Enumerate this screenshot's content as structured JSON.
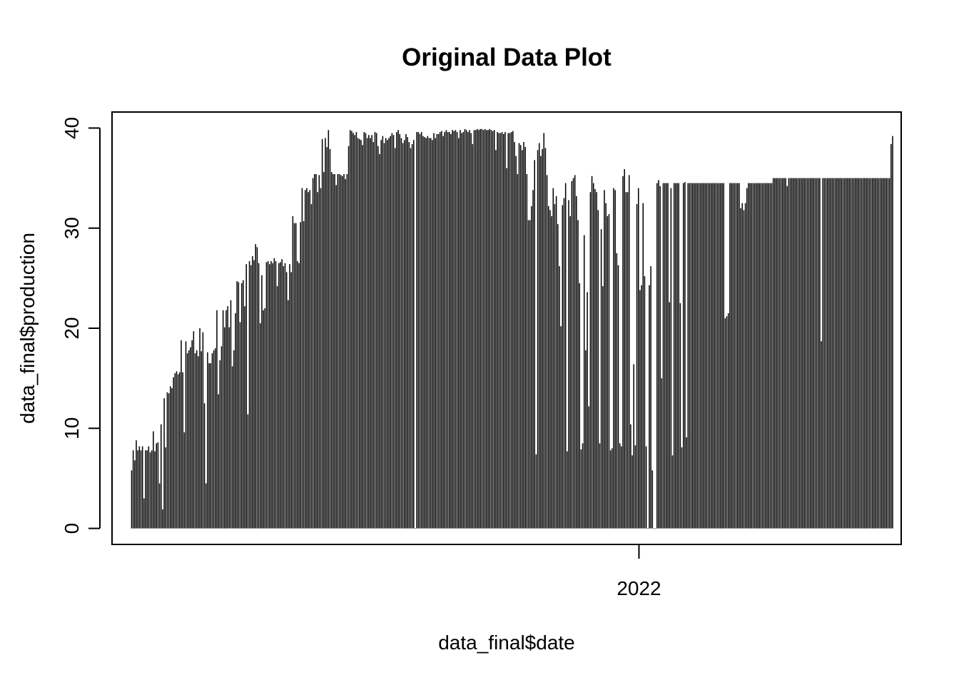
{
  "chart_data": {
    "type": "bar",
    "title": "Original Data Plot",
    "xlabel": "data_final$date",
    "ylabel": "data_final$production",
    "x_ticks": [
      {
        "value": "2022-01-01",
        "label": "2022"
      }
    ],
    "y_ticks": [
      0,
      10,
      20,
      30,
      40
    ],
    "ylim": [
      -1.6,
      41.6
    ],
    "xlim": [
      "2020-10-28",
      "2022-08-03"
    ],
    "grid": false,
    "legend": "none",
    "bar_color": "#000000",
    "date_range": [
      "2020-11-13",
      "2022-07-27"
    ],
    "series": [
      {
        "values": [
          5.8,
          7.8,
          6.8,
          8.8,
          7.8,
          8.2,
          7.8,
          8.2,
          3.0,
          7.8,
          7.8,
          8.2,
          7.6,
          7.8,
          9.7,
          7.7,
          8.5,
          8.6,
          4.5,
          10.4,
          1.9,
          13.0,
          8.1,
          13.6,
          13.5,
          14.2,
          14.0,
          15.1,
          15.5,
          15.7,
          15.4,
          15.6,
          18.8,
          15.6,
          9.6,
          18.7,
          17.5,
          17.8,
          18.1,
          18.8,
          19.7,
          17.5,
          17.8,
          17.2,
          20.0,
          17.7,
          19.6,
          12.5,
          4.5,
          17.6,
          16.5,
          16.5,
          17.5,
          17.8,
          18.0,
          21.8,
          13.4,
          16.8,
          18.2,
          21.8,
          20.1,
          21.8,
          22.2,
          20.1,
          22.8,
          16.2,
          17.8,
          21.5,
          24.7,
          24.6,
          20.6,
          24.5,
          24.8,
          22.2,
          26.4,
          11.4,
          26.7,
          26.3,
          27.2,
          26.8,
          28.4,
          28.1,
          26.5,
          20.5,
          25.3,
          21.8,
          22.0,
          26.6,
          26.7,
          26.4,
          26.7,
          26.5,
          27.0,
          26.7,
          24.2,
          26.5,
          26.6,
          26.9,
          26.2,
          26.5,
          25.6,
          22.8,
          26.4,
          25.6,
          31.2,
          30.5,
          30.5,
          26.7,
          26.5,
          30.6,
          34.0,
          30.7,
          33.8,
          34.0,
          33.6,
          33.8,
          32.4,
          35.0,
          35.4,
          35.4,
          33.6,
          35.3,
          34.0,
          38.9,
          35.6,
          39.0,
          38.1,
          39.8,
          37.9,
          35.6,
          35.4,
          35.4,
          34.3,
          35.4,
          35.4,
          35.3,
          35.2,
          35.4,
          34.9,
          35.4,
          38.2,
          39.8,
          39.7,
          39.5,
          39.3,
          39.6,
          39.0,
          38.9,
          38.8,
          38.3,
          39.6,
          39.5,
          39.0,
          39.3,
          39.0,
          39.3,
          38.6,
          39.6,
          39.5,
          38.2,
          37.4,
          38.8,
          39.2,
          38.5,
          39.0,
          38.8,
          39.0,
          39.2,
          39.5,
          39.3,
          38.0,
          39.6,
          39.8,
          39.4,
          39.0,
          38.5,
          38.8,
          39.4,
          39.1,
          38.6,
          38.0,
          38.4,
          38.8,
          0.0,
          39.6,
          39.6,
          39.4,
          39.6,
          39.2,
          39.1,
          39.0,
          39.2,
          39.0,
          39.0,
          38.8,
          39.5,
          39.0,
          39.4,
          39.4,
          39.6,
          39.7,
          39.2,
          39.6,
          39.8,
          39.6,
          39.6,
          39.4,
          39.8,
          39.7,
          39.8,
          39.6,
          39.0,
          39.8,
          39.5,
          39.6,
          39.9,
          39.8,
          39.6,
          39.8,
          39.5,
          38.4,
          39.8,
          39.8,
          39.9,
          39.8,
          39.9,
          39.9,
          39.8,
          39.9,
          39.8,
          39.8,
          39.9,
          39.8,
          39.7,
          39.8,
          37.8,
          39.6,
          39.5,
          39.5,
          39.6,
          39.4,
          39.6,
          36.0,
          39.5,
          39.5,
          39.6,
          39.7,
          38.6,
          37.2,
          35.4,
          38.5,
          38.3,
          37.8,
          38.6,
          38.1,
          35.4,
          30.8,
          30.8,
          32.2,
          33.8,
          36.8,
          7.4,
          37.8,
          38.5,
          37.2,
          37.9,
          39.5,
          38.0,
          35.3,
          32.2,
          31.8,
          31.2,
          34.0,
          32.4,
          33.2,
          30.4,
          26.2,
          20.2,
          32.3,
          33.0,
          34.5,
          7.7,
          32.8,
          31.2,
          34.7,
          35.0,
          35.3,
          33.2,
          30.8,
          24.5,
          7.9,
          8.5,
          29.3,
          17.8,
          23.6,
          12.2,
          33.6,
          35.2,
          34.5,
          33.9,
          33.6,
          31.8,
          8.5,
          29.9,
          24.2,
          33.8,
          32.5,
          31.2,
          31.4,
          7.8,
          8.0,
          34.0,
          33.8,
          27.5,
          26.3,
          8.5,
          8.2,
          35.2,
          35.9,
          33.6,
          33.6,
          35.3,
          10.4,
          7.3,
          16.4,
          8.3,
          32.4,
          34.0,
          23.8,
          24.3,
          32.5,
          25.2,
          8.2,
          0.0,
          24.3,
          26.2,
          5.8,
          0.0,
          0.0,
          34.5,
          34.8,
          34.2,
          15.0,
          34.5,
          34.5,
          34.5,
          34.5,
          22.6,
          34.0,
          7.3,
          34.5,
          34.5,
          34.5,
          34.5,
          22.5,
          8.1,
          34.5,
          34.6,
          9.1,
          34.5,
          34.5,
          34.5,
          34.5,
          34.5,
          34.5,
          34.5,
          34.5,
          34.5,
          34.5,
          34.5,
          34.5,
          34.5,
          34.5,
          34.5,
          34.5,
          34.5,
          34.5,
          34.5,
          34.5,
          34.5,
          34.5,
          34.5,
          34.5,
          21.0,
          21.2,
          21.5,
          34.5,
          34.5,
          34.5,
          34.5,
          34.5,
          34.5,
          34.5,
          32.0,
          32.5,
          31.8,
          32.5,
          34.0,
          34.5,
          34.5,
          34.5,
          34.5,
          34.5,
          34.5,
          34.5,
          34.5,
          34.5,
          34.5,
          34.5,
          34.5,
          34.5,
          34.5,
          34.5,
          34.5,
          35.0,
          35.0,
          35.0,
          35.0,
          35.0,
          35.0,
          35.0,
          35.0,
          35.0,
          34.2,
          35.0,
          35.0,
          35.0,
          35.0,
          35.0,
          35.0,
          35.0,
          35.0,
          35.0,
          35.0,
          35.0,
          35.0,
          35.0,
          35.0,
          35.0,
          35.0,
          35.0,
          35.0,
          35.0,
          35.0,
          35.0,
          18.7,
          35.0,
          35.0,
          35.0,
          35.0,
          35.0,
          35.0,
          35.0,
          35.0,
          35.0,
          35.0,
          35.0,
          35.0,
          35.0,
          35.0,
          35.0,
          35.0,
          35.0,
          35.0,
          35.0,
          35.0,
          35.0,
          35.0,
          35.0,
          35.0,
          35.0,
          35.0,
          35.0,
          35.0,
          35.0,
          35.0,
          35.0,
          35.0,
          35.0,
          35.0,
          35.0,
          35.0,
          35.0,
          35.0,
          35.0,
          35.0,
          35.0,
          35.0,
          35.0,
          35.0,
          38.4,
          39.2
        ]
      }
    ]
  }
}
